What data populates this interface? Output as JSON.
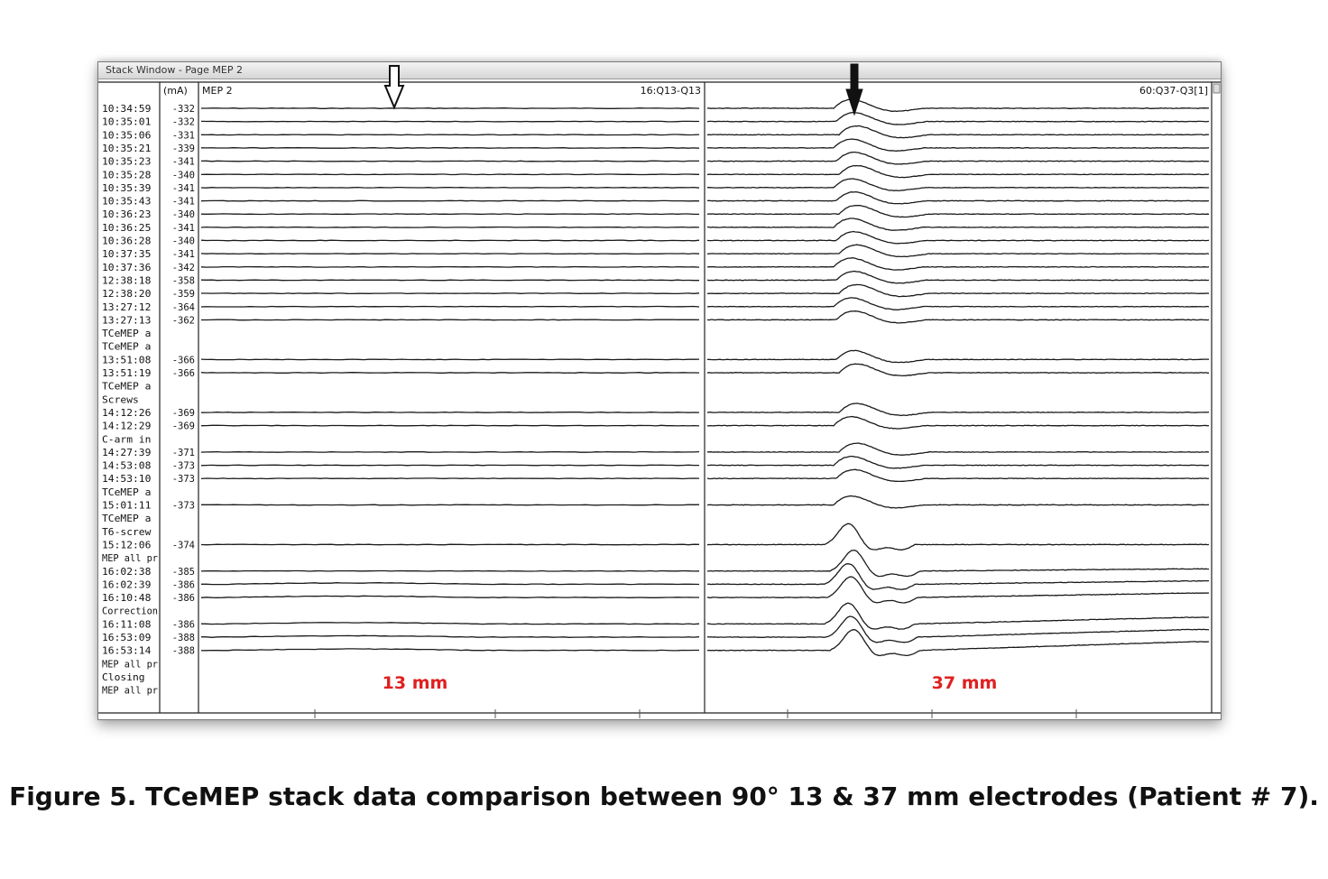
{
  "window": {
    "title": "Stack Window - Page MEP 2"
  },
  "figure": {
    "caption": "Figure 5. TCeMEP stack data comparison between 90° 13 & 37 mm electrodes (Patient # 7)."
  },
  "chart_data": {
    "type": "line",
    "unit_header": "(mA)",
    "page_label": "MEP 2",
    "left_channel": {
      "label": "16:Q13-Q13",
      "annotation": "13 mm",
      "annotation_color": "#e02020",
      "arrow": "hollow"
    },
    "right_channel": {
      "label": "60:Q37-Q3[1]",
      "annotation": "37 mm",
      "annotation_color": "#e02020",
      "arrow": "solid"
    },
    "rows": [
      {
        "time": "10:34:59",
        "ma": "-332"
      },
      {
        "time": "10:35:01",
        "ma": "-332"
      },
      {
        "time": "10:35:06",
        "ma": "-331"
      },
      {
        "time": "10:35:21",
        "ma": "-339"
      },
      {
        "time": "10:35:23",
        "ma": "-341"
      },
      {
        "time": "10:35:28",
        "ma": "-340"
      },
      {
        "time": "10:35:39",
        "ma": "-341"
      },
      {
        "time": "10:35:43",
        "ma": "-341"
      },
      {
        "time": "10:36:23",
        "ma": "-340"
      },
      {
        "time": "10:36:25",
        "ma": "-341"
      },
      {
        "time": "10:36:28",
        "ma": "-340"
      },
      {
        "time": "10:37:35",
        "ma": "-341"
      },
      {
        "time": "10:37:36",
        "ma": "-342"
      },
      {
        "time": "12:38:18",
        "ma": "-358"
      },
      {
        "time": "12:38:20",
        "ma": "-359"
      },
      {
        "time": "13:27:12",
        "ma": "-364"
      },
      {
        "time": "13:27:13",
        "ma": "-362"
      },
      {
        "time": "TCeMEP a",
        "ma": ""
      },
      {
        "time": "TCeMEP a",
        "ma": ""
      },
      {
        "time": "13:51:08",
        "ma": "-366"
      },
      {
        "time": "13:51:19",
        "ma": "-366"
      },
      {
        "time": "TCeMEP a",
        "ma": ""
      },
      {
        "time": "Screws",
        "ma": ""
      },
      {
        "time": "14:12:26",
        "ma": "-369"
      },
      {
        "time": "14:12:29",
        "ma": "-369"
      },
      {
        "time": "C-arm in",
        "ma": ""
      },
      {
        "time": "14:27:39",
        "ma": "-371"
      },
      {
        "time": "14:53:08",
        "ma": "-373"
      },
      {
        "time": "14:53:10",
        "ma": "-373"
      },
      {
        "time": "TCeMEP a",
        "ma": ""
      },
      {
        "time": "15:01:11",
        "ma": "-373"
      },
      {
        "time": "TCeMEP a",
        "ma": ""
      },
      {
        "time": "T6-screw",
        "ma": ""
      },
      {
        "time": "15:12:06",
        "ma": "-374"
      },
      {
        "time": "MEP all pr",
        "ma": ""
      },
      {
        "time": "16:02:38",
        "ma": "-385"
      },
      {
        "time": "16:02:39",
        "ma": "-386"
      },
      {
        "time": "16:10:48",
        "ma": "-386"
      },
      {
        "time": "Correction",
        "ma": ""
      },
      {
        "time": "16:11:08",
        "ma": "-386"
      },
      {
        "time": "16:53:09",
        "ma": "-388"
      },
      {
        "time": "16:53:14",
        "ma": "-388"
      },
      {
        "time": "MEP all pr",
        "ma": ""
      },
      {
        "time": "Closing",
        "ma": ""
      },
      {
        "time": "MEP all pr",
        "ma": ""
      }
    ]
  }
}
